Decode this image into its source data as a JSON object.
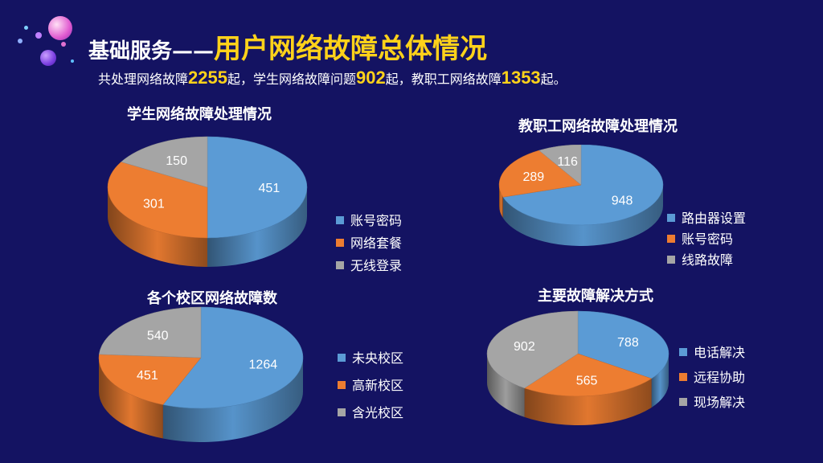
{
  "title": {
    "prefix": "基础服务——",
    "main": "用户网络故障总体情况"
  },
  "summary": {
    "parts": [
      "共处理网络故障",
      "2255",
      "起，学生网络故障问题",
      "902",
      "起，教职工网络故障",
      "1353",
      "起。"
    ]
  },
  "colors": {
    "background": "#141362",
    "accent": "#ffd21a",
    "blue": "#5b9bd5",
    "orange": "#ed7d31",
    "gray": "#a5a5a5"
  },
  "chart_data": [
    {
      "type": "pie",
      "title": "学生网络故障处理情况",
      "categories": [
        "账号密码",
        "网络套餐",
        "无线登录"
      ],
      "values": [
        451,
        301,
        150
      ],
      "colors": [
        "#5b9bd5",
        "#ed7d31",
        "#a5a5a5"
      ],
      "legend": "right"
    },
    {
      "type": "pie",
      "title": "教职工网络故障处理情况",
      "categories": [
        "路由器设置",
        "账号密码",
        "线路故障"
      ],
      "values": [
        948,
        289,
        116
      ],
      "colors": [
        "#5b9bd5",
        "#ed7d31",
        "#a5a5a5"
      ],
      "legend": "right"
    },
    {
      "type": "pie",
      "title": "各个校区网络故障数",
      "categories": [
        "未央校区",
        "高新校区",
        "含光校区"
      ],
      "values": [
        1264,
        451,
        540
      ],
      "colors": [
        "#5b9bd5",
        "#ed7d31",
        "#a5a5a5"
      ],
      "legend": "right"
    },
    {
      "type": "pie",
      "title": "主要故障解决方式",
      "categories": [
        "电话解决",
        "远程协助",
        "现场解决"
      ],
      "values": [
        788,
        565,
        902
      ],
      "colors": [
        "#5b9bd5",
        "#ed7d31",
        "#a5a5a5"
      ],
      "legend": "right"
    }
  ]
}
